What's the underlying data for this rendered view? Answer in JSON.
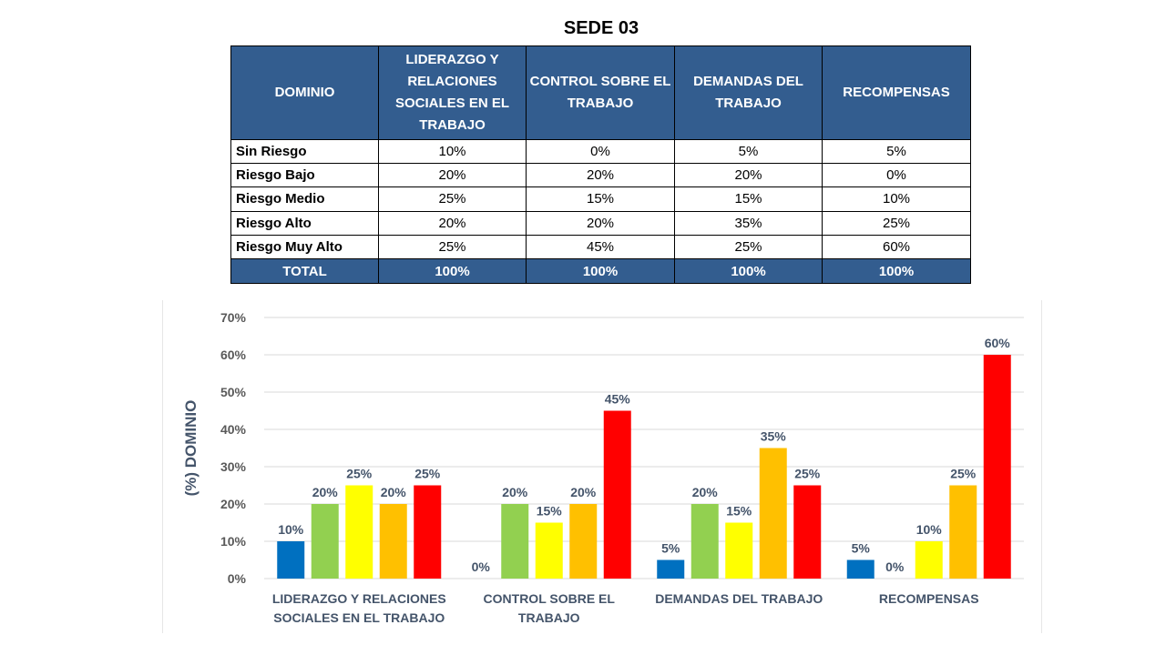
{
  "title": "SEDE 03",
  "table": {
    "header": [
      "DOMINIO",
      "LIDERAZGO Y RELACIONES SOCIALES EN EL TRABAJO",
      "CONTROL SOBRE EL TRABAJO",
      "DEMANDAS DEL TRABAJO",
      "RECOMPENSAS"
    ],
    "rows": [
      {
        "label": "Sin Riesgo",
        "values": [
          "10%",
          "0%",
          "5%",
          "5%"
        ]
      },
      {
        "label": "Riesgo Bajo",
        "values": [
          "20%",
          "20%",
          "20%",
          "0%"
        ]
      },
      {
        "label": "Riesgo Medio",
        "values": [
          "25%",
          "15%",
          "15%",
          "10%"
        ]
      },
      {
        "label": "Riesgo Alto",
        "values": [
          "20%",
          "20%",
          "35%",
          "25%"
        ]
      },
      {
        "label": "Riesgo Muy Alto",
        "values": [
          "25%",
          "45%",
          "25%",
          "60%"
        ]
      }
    ],
    "total": {
      "label": "TOTAL",
      "values": [
        "100%",
        "100%",
        "100%",
        "100%"
      ]
    }
  },
  "chart_data": {
    "type": "bar",
    "categories": [
      [
        "LIDERAZGO Y RELACIONES",
        "SOCIALES EN EL TRABAJO"
      ],
      [
        "CONTROL SOBRE EL",
        "TRABAJO"
      ],
      [
        "DEMANDAS DEL TRABAJO"
      ],
      [
        "RECOMPENSAS"
      ]
    ],
    "series": [
      {
        "color": "#0070c0",
        "values": [
          10,
          0,
          5,
          5
        ]
      },
      {
        "color": "#92d050",
        "values": [
          20,
          20,
          20,
          0
        ]
      },
      {
        "color": "#ffff00",
        "values": [
          25,
          15,
          15,
          10
        ]
      },
      {
        "color": "#ffc000",
        "values": [
          20,
          20,
          35,
          25
        ]
      },
      {
        "color": "#ff0000",
        "values": [
          25,
          45,
          25,
          60
        ]
      }
    ],
    "ylabel": "(%) DOMINIO",
    "ylim": [
      0,
      70
    ],
    "yticks": [
      0,
      10,
      20,
      30,
      40,
      50,
      60,
      70
    ],
    "tick_suffix": "%",
    "value_suffix": "%",
    "grid": true,
    "legend": "none"
  }
}
